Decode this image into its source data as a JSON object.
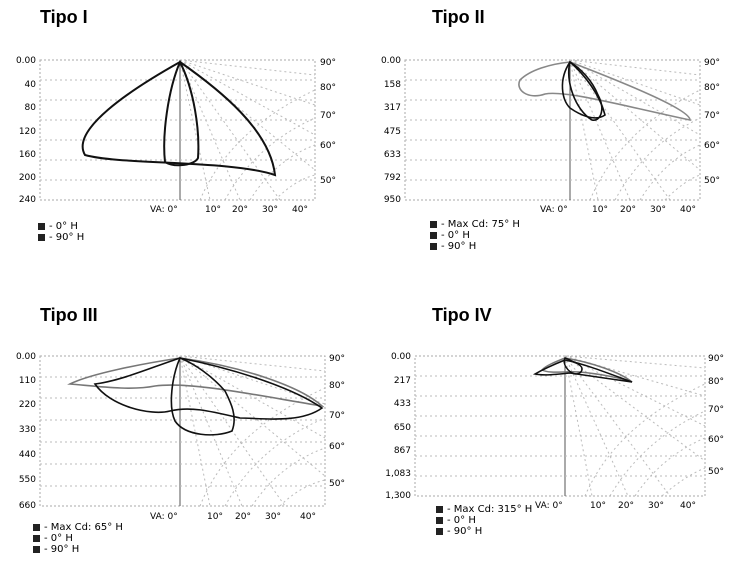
{
  "panels": [
    {
      "title": "Tipo I",
      "y_ticks": [
        "0.00",
        "40",
        "80",
        "120",
        "160",
        "200",
        "240"
      ],
      "angle_labels": [
        "90°",
        "80°",
        "70°",
        "60°",
        "50°"
      ],
      "x_labels": [
        "VA: 0°",
        "10°",
        "20°",
        "30°",
        "40°"
      ],
      "legend": [
        "- 0° H",
        "- 90° H"
      ]
    },
    {
      "title": "Tipo II",
      "y_ticks": [
        "0.00",
        "158",
        "317",
        "475",
        "633",
        "792",
        "950"
      ],
      "angle_labels": [
        "90°",
        "80°",
        "70°",
        "60°",
        "50°"
      ],
      "x_labels": [
        "VA: 0°",
        "10°",
        "20°",
        "30°",
        "40°"
      ],
      "legend": [
        "- Max Cd: 75° H",
        "- 0° H",
        "- 90° H"
      ]
    },
    {
      "title": "Tipo III",
      "y_ticks": [
        "0.00",
        "110",
        "220",
        "330",
        "440",
        "550",
        "660"
      ],
      "angle_labels": [
        "90°",
        "80°",
        "70°",
        "60°",
        "50°"
      ],
      "x_labels": [
        "VA: 0°",
        "10°",
        "20°",
        "30°",
        "40°"
      ],
      "legend": [
        "- Max Cd: 65° H",
        "- 0° H",
        "- 90° H"
      ]
    },
    {
      "title": "Tipo IV",
      "y_ticks": [
        "0.00",
        "217",
        "433",
        "650",
        "867",
        "1,083",
        "1,300"
      ],
      "angle_labels": [
        "90°",
        "80°",
        "70°",
        "60°",
        "50°"
      ],
      "x_labels": [
        "VA: 0°",
        "10°",
        "20°",
        "30°",
        "40°"
      ],
      "legend": [
        "- Max Cd: 315° H",
        "- 0° H",
        "- 90° H"
      ]
    }
  ]
}
